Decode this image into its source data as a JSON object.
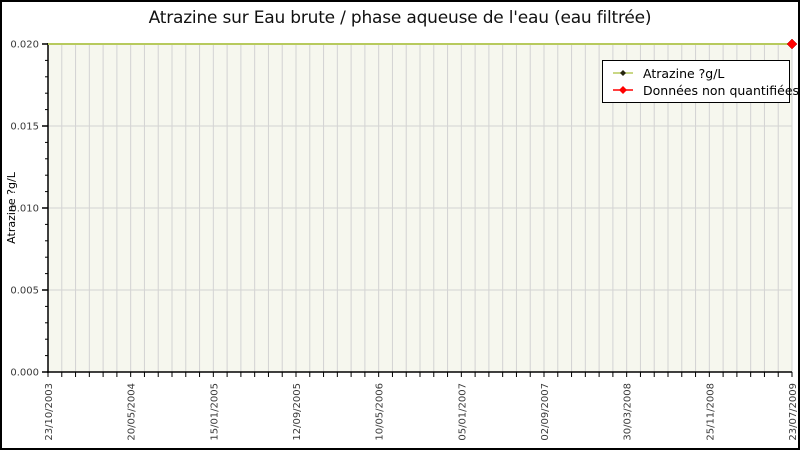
{
  "chart_data": {
    "type": "line",
    "title": "Atrazine sur Eau brute / phase aqueuse de l'eau (eau filtrée)",
    "ylabel": "Atrazine ?g/L",
    "xlabel": "",
    "ylim": [
      0,
      0.02
    ],
    "ytick_values": [
      0,
      0.005,
      0.01,
      0.015,
      0.02
    ],
    "ytick_labels": [
      "0.000",
      "0.005",
      "0.010",
      "0.015",
      "0.020"
    ],
    "y_minor_step": 0.001,
    "x_point_count": 55,
    "x_label_every": 6,
    "xtick_labels": [
      "23/10/2003",
      "20/05/2004",
      "15/01/2005",
      "12/09/2005",
      "10/05/2006",
      "05/01/2007",
      "02/09/2007",
      "30/03/2008",
      "25/11/2008",
      "23/07/2009"
    ],
    "grid": true,
    "series": [
      {
        "name": "Atrazine ?g/L",
        "color": "#b7ca5d",
        "constant_value": 0.02,
        "point_count": 55
      }
    ],
    "non_quantified_markers": [
      {
        "x_index": 54,
        "value": 0.02,
        "color": "#ff0000"
      }
    ],
    "legend": {
      "position": "top-right",
      "entries": [
        {
          "label": "Atrazine ?g/L",
          "line_color": "#b7ca5d",
          "marker_color": "#26260f"
        },
        {
          "label": "Données non quantifiées",
          "line_color": "#ff0000",
          "marker_color": "#ff0000"
        }
      ]
    },
    "colors": {
      "plot_background": "#f6f7ee",
      "gridline": "#d3d3d3",
      "axis": "#000000",
      "tick_label": "#3a3a3a",
      "title": "#111111"
    }
  }
}
